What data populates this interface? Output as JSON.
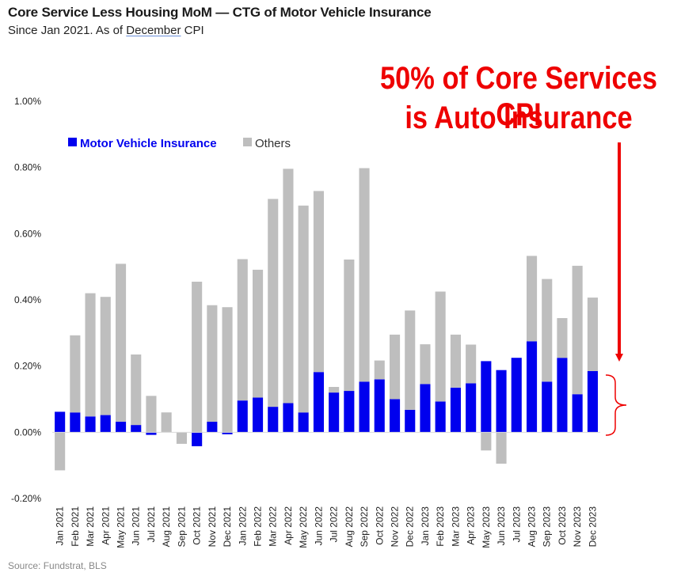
{
  "title": "Core Service Less Housing MoM — CTG of Motor Vehicle Insurance",
  "subtitle": {
    "prefix": "Since Jan 2021. As of ",
    "underlined": "December",
    "suffix": " CPI"
  },
  "annotation": {
    "line1": "50% of Core Services CPI",
    "line2": "is Auto Insurance",
    "color": "#ee0000"
  },
  "source": "Source: Fundstrat, BLS",
  "chart_data": {
    "type": "bar",
    "stacked": true,
    "title": "Core Service Less Housing MoM — CTG of Motor Vehicle Insurance",
    "xlabel": "",
    "ylabel": "",
    "ylim": [
      -0.2,
      1.0
    ],
    "yticks": [
      "1.00%",
      "0.80%",
      "0.60%",
      "0.40%",
      "0.20%",
      "0.00%",
      "-0.20%"
    ],
    "ytick_values": [
      1.0,
      0.8,
      0.6,
      0.4,
      0.2,
      0.0,
      -0.2
    ],
    "grid": false,
    "legend_position": "top-left",
    "categories": [
      "Jan 2021",
      "Feb 2021",
      "Mar 2021",
      "Apr 2021",
      "May 2021",
      "Jun 2021",
      "Jul 2021",
      "Aug 2021",
      "Sep 2021",
      "Oct 2021",
      "Nov 2021",
      "Dec 2021",
      "Jan 2022",
      "Feb 2022",
      "Mar 2022",
      "Apr 2022",
      "May 2022",
      "Jun 2022",
      "Jul 2022",
      "Aug 2022",
      "Sep 2022",
      "Oct 2022",
      "Nov 2022",
      "Dec 2022",
      "Jan 2023",
      "Feb 2023",
      "Mar 2023",
      "Apr 2023",
      "May 2023",
      "Jun 2023",
      "Jul 2023",
      "Aug 2023",
      "Sep 2023",
      "Oct 2023",
      "Nov 2023",
      "Dec 2023"
    ],
    "series": [
      {
        "name": "Motor Vehicle Insurance",
        "color": "#0000ee",
        "values": [
          0.062,
          0.06,
          0.048,
          0.052,
          0.032,
          0.022,
          -0.008,
          0.0,
          0.0,
          -0.042,
          0.032,
          -0.006,
          0.096,
          0.105,
          0.077,
          0.088,
          0.06,
          0.182,
          0.12,
          0.125,
          0.153,
          0.16,
          0.1,
          0.068,
          0.146,
          0.093,
          0.135,
          0.148,
          0.215,
          0.188,
          0.225,
          0.275,
          0.153,
          0.225,
          0.115,
          0.185
        ]
      },
      {
        "name": "Others",
        "color": "#bebebe",
        "values": [
          -0.115,
          0.233,
          0.372,
          0.357,
          0.477,
          0.213,
          0.11,
          0.06,
          -0.035,
          0.455,
          0.352,
          0.378,
          0.427,
          0.386,
          0.628,
          0.708,
          0.625,
          0.547,
          0.017,
          0.397,
          0.645,
          0.057,
          0.195,
          0.3,
          0.12,
          0.332,
          0.16,
          0.117,
          -0.055,
          -0.095,
          0.0,
          0.258,
          0.31,
          0.12,
          0.388,
          0.222
        ]
      }
    ]
  }
}
